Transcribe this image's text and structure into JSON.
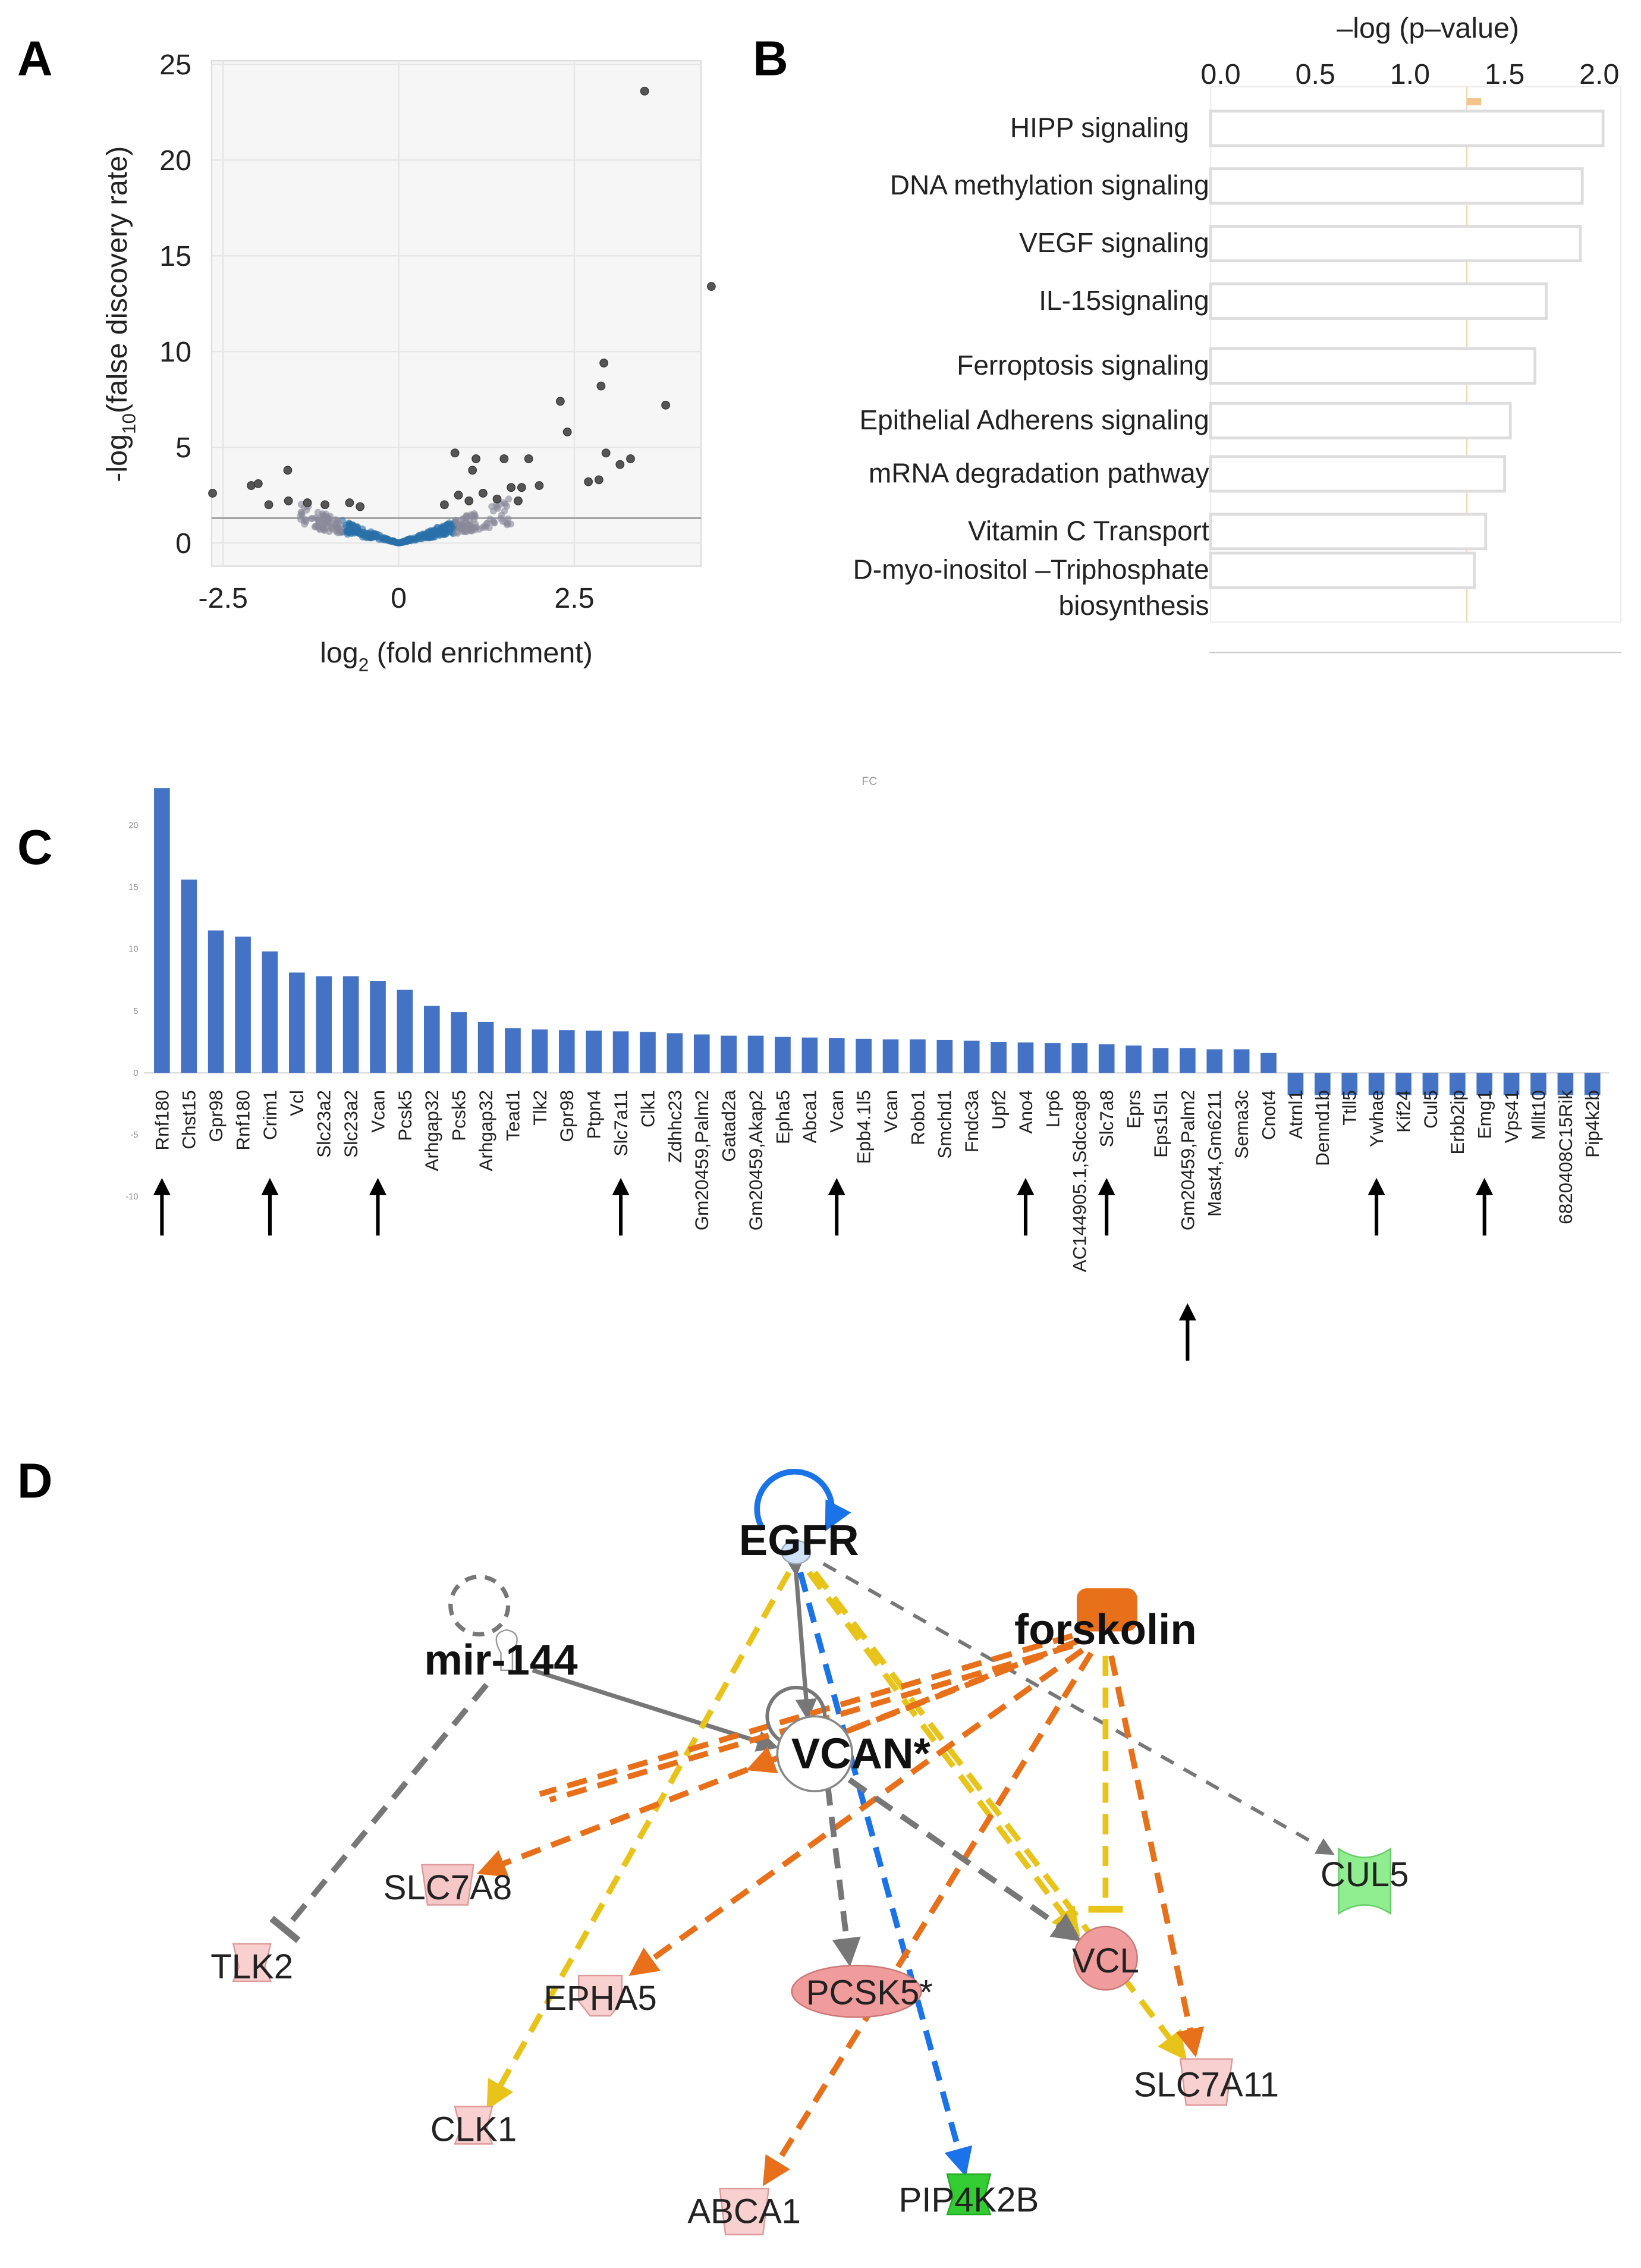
{
  "panels": {
    "a": "A",
    "b": "B",
    "c": "C",
    "d": "D"
  },
  "chart_data": [
    {
      "type": "scatter",
      "title": "",
      "xlabel": "log2 (fold enrichment)",
      "xlabel_main": "log",
      "xlabel_sub": "2",
      "xlabel_rest": " (fold enrichment)",
      "ylabel_main": "-log",
      "ylabel_sub": "10",
      "ylabel_rest": "(false discovery rate)",
      "xlim": [
        -3.0,
        4.6
      ],
      "ylim": [
        -1.2,
        25.5
      ],
      "xticks": [
        "-2.5",
        "0",
        "2.5"
      ],
      "xtick_values": [
        -2.5,
        0,
        2.5
      ],
      "yticks": [
        "0",
        "5",
        "10",
        "15",
        "20",
        "25"
      ],
      "ytick_values": [
        0,
        5,
        10,
        15,
        20,
        25
      ],
      "threshold_y": 1.3,
      "grid": true,
      "points": [
        [
          -2.65,
          2.6
        ],
        [
          -2.1,
          3.0
        ],
        [
          -2.0,
          3.1
        ],
        [
          -1.85,
          2.0
        ],
        [
          -1.58,
          3.8
        ],
        [
          -1.57,
          2.2
        ],
        [
          3.5,
          23.6
        ],
        [
          4.45,
          13.4
        ],
        [
          2.92,
          9.4
        ],
        [
          2.88,
          8.2
        ],
        [
          2.3,
          7.4
        ],
        [
          3.8,
          7.2
        ],
        [
          2.4,
          5.8
        ],
        [
          0.8,
          4.7
        ],
        [
          1.1,
          4.4
        ],
        [
          1.5,
          4.4
        ],
        [
          1.85,
          4.4
        ],
        [
          2.95,
          4.7
        ],
        [
          3.3,
          4.4
        ],
        [
          3.15,
          4.1
        ],
        [
          1.05,
          3.8
        ],
        [
          2.0,
          3.0
        ],
        [
          2.7,
          3.2
        ],
        [
          2.85,
          3.3
        ],
        [
          1.6,
          2.9
        ],
        [
          1.75,
          2.9
        ],
        [
          0.85,
          2.5
        ],
        [
          1.2,
          2.6
        ],
        [
          1.4,
          2.3
        ],
        [
          1.7,
          2.2
        ],
        [
          -1.3,
          2.1
        ],
        [
          -1.05,
          2.0
        ],
        [
          -0.7,
          2.1
        ],
        [
          -0.55,
          1.9
        ],
        [
          1.0,
          2.2
        ],
        [
          0.65,
          2.0
        ]
      ],
      "dense_cluster": {
        "x_range": [
          -1.6,
          1.8
        ],
        "shape": "V around (0,0)"
      }
    },
    {
      "type": "bar",
      "orientation": "horizontal",
      "xlabel": "–log (p–value)",
      "xticks": [
        "0.0",
        "0.5",
        "1.0",
        "1.5",
        "2.0"
      ],
      "xlim": [
        0,
        2.1
      ],
      "threshold": 1.3,
      "categories": [
        "HIPP signaling",
        "DNA methylation signaling",
        "VEGF signaling",
        "IL-15signaling",
        "Ferroptosis signaling",
        "Epithelial Adherens signaling",
        "mRNA degradation pathway",
        "Vitamin C Transport",
        "D-myo-inositol –Triphosphate"
      ],
      "category_extra_line": "biosynthesis",
      "values": [
        2.02,
        1.91,
        1.9,
        1.72,
        1.66,
        1.53,
        1.5,
        1.4,
        1.34
      ]
    },
    {
      "type": "bar",
      "title": "FC",
      "yticks": [
        "20",
        "15",
        "10",
        "5",
        "0",
        "-5",
        "-10"
      ],
      "ytick_values": [
        20,
        15,
        10,
        5,
        0,
        -5,
        -10
      ],
      "ylim": [
        -10,
        23.5
      ],
      "bar_color": "#4472c4",
      "categories": [
        "Rnf180",
        "Chst15",
        "Gpr98",
        "Rnf180",
        "Crim1",
        "Vcl",
        "Slc23a2",
        "Slc23a2",
        "Vcan",
        "Pcsk5",
        "Arhgap32",
        "Pcsk5",
        "Arhgap32",
        "Tead1",
        "Tlk2",
        "Gpr98",
        "Ptpn4",
        "Slc7a11",
        "Clk1",
        "Zdhhc23",
        "Gm20459,Palm2",
        "Gatad2a",
        "Gm20459,Akap2",
        "Epha5",
        "Abca1",
        "Vcan",
        "Epb4.1l5",
        "Vcan",
        "Robo1",
        "Smchd1",
        "Fndc3a",
        "Upf2",
        "Ano4",
        "Lrp6",
        "AC144905.1,Sdccag8",
        "Slc7a8",
        "Eprs",
        "Eps15l1",
        "Gm20459,Palm2",
        "Mast4,Gm6211",
        "Sema3c",
        "Cnot4",
        "Atrnl1",
        "Dennd1b",
        "Ttll5",
        "Ywhae",
        "Kif24",
        "Cul5",
        "Erbb2ip",
        "Emg1",
        "Vps41",
        "Mllt10",
        "6820408C15Rik",
        "Pip4k2b"
      ],
      "values": [
        23.0,
        15.6,
        11.5,
        11.0,
        9.8,
        8.1,
        7.8,
        7.8,
        7.4,
        6.7,
        5.4,
        4.9,
        4.1,
        3.6,
        3.5,
        3.45,
        3.4,
        3.35,
        3.3,
        3.2,
        3.1,
        3.0,
        3.0,
        2.9,
        2.85,
        2.8,
        2.75,
        2.7,
        2.7,
        2.65,
        2.6,
        2.5,
        2.45,
        2.4,
        2.4,
        2.3,
        2.2,
        2.0,
        2.0,
        1.9,
        1.9,
        1.6,
        -1.8,
        -1.8,
        -1.8,
        -1.8,
        -1.8,
        -1.8,
        -1.8,
        -1.8,
        -1.8,
        -1.8,
        -1.8,
        -1.8
      ],
      "arrow_marked": [
        0,
        4,
        8,
        17,
        25,
        32,
        35,
        38,
        45,
        49
      ]
    }
  ],
  "network": {
    "nodes": {
      "egfr": "EGFR",
      "mir144": "mir-144",
      "forskolin": "forskolin",
      "vcan": "VCAN*",
      "cul5": "CUL5",
      "slc7a8": "SLC7A8",
      "tlk2": "TLK2",
      "epha5": "EPHA5",
      "pcsk5": "PCSK5*",
      "vcl": "VCL",
      "slc7a11": "SLC7A11",
      "clk1": "CLK1",
      "abca1": "ABCA1",
      "pip4k2b": "PIP4K2B"
    },
    "colors": {
      "orange": "#e8701a",
      "yellow": "#e8c41a",
      "gray": "#777777",
      "blue": "#1a73e8",
      "pink": "#f4b6b6",
      "green": "#7ee07e"
    }
  }
}
